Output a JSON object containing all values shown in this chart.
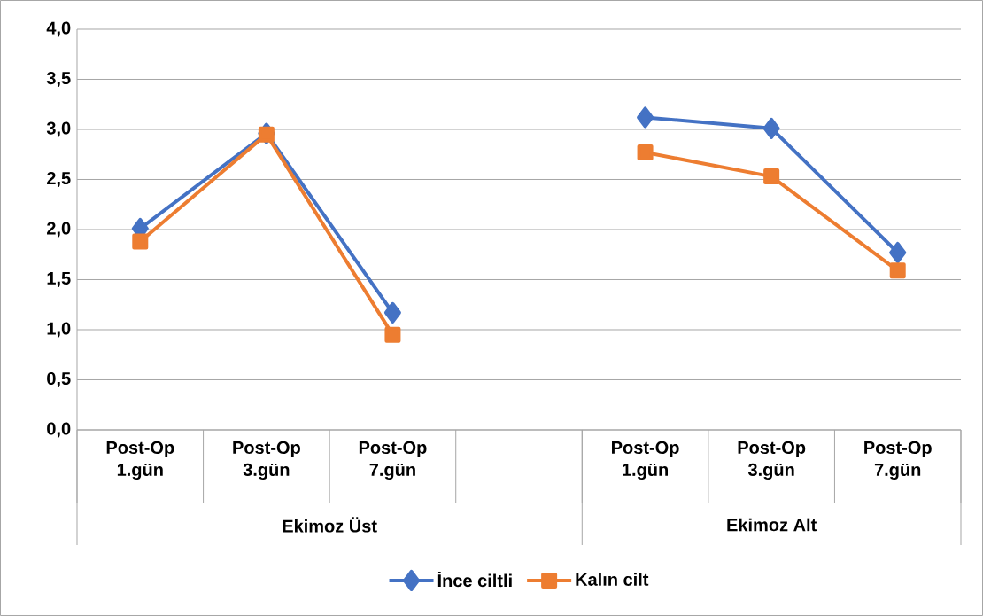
{
  "chart_data": {
    "type": "line",
    "categories": [
      "Post-Op 1.gün",
      "Post-Op 3.gün",
      "Post-Op 7.gün",
      null,
      "Post-Op 1.gün",
      "Post-Op 3.gün",
      "Post-Op 7.gün"
    ],
    "series": [
      {
        "name": "İnce ciltli",
        "color": "#4472c4",
        "marker": "diamond",
        "values": [
          2.01,
          2.96,
          1.17,
          null,
          3.12,
          3.01,
          1.77
        ]
      },
      {
        "name": "Kalın cilt",
        "color": "#ed7d31",
        "marker": "square",
        "values": [
          1.88,
          2.95,
          0.95,
          null,
          2.77,
          2.53,
          1.59
        ]
      }
    ],
    "annotations": [
      "Ekimoz Üst",
      "Ekimoz Alt"
    ],
    "ylim": [
      0,
      4
    ],
    "yticks": [
      {
        "value": 0,
        "label": "0,0"
      },
      {
        "value": 0.5,
        "label": "0,5"
      },
      {
        "value": 1,
        "label": "1,0"
      },
      {
        "value": 1.5,
        "label": "1,5"
      },
      {
        "value": 2,
        "label": "2,0"
      },
      {
        "value": 2.5,
        "label": "2,5"
      },
      {
        "value": 3,
        "label": "3,0"
      },
      {
        "value": 3.5,
        "label": "3,5"
      },
      {
        "value": 4,
        "label": "4,0"
      }
    ],
    "grid": "y",
    "legend": "bottom"
  }
}
